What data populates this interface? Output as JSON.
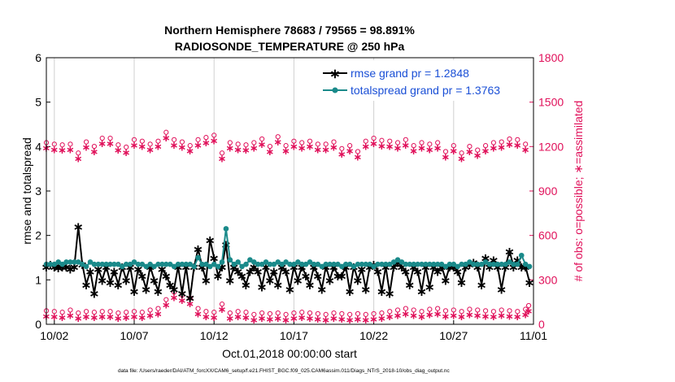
{
  "chart_data": {
    "type": "line",
    "title_line1": "Northern Hemisphere 78683 / 79565 = 98.891%",
    "title_line2": "RADIOSONDE_TEMPERATURE @ 250 hPa",
    "xlabel": "Oct.01,2018 00:00:00 start",
    "ylabel_left": "rmse and totalspread",
    "ylabel_right": "# of obs: o=possible; ∗=assimilated",
    "footer": "data file: /Users/raeder/DAI/ATM_forcXX/CAM6_setup/f.e21.FHIST_BGC.f09_025.CAM6assim.011/Diags_NTrS_2018-10/obs_diag_output.nc",
    "xlim": [
      1.5,
      32.0
    ],
    "ylim_left": [
      0,
      6
    ],
    "ylim_right": [
      0,
      1800
    ],
    "x_tick_values": [
      2,
      7,
      12,
      17,
      22,
      27,
      32
    ],
    "x_tick_labels": [
      "10/02",
      "10/07",
      "10/12",
      "10/17",
      "10/22",
      "10/27",
      "11/01"
    ],
    "y_left_ticks": [
      "0",
      "1",
      "2",
      "3",
      "4",
      "5",
      "6"
    ],
    "y_right_ticks": [
      "0",
      "300",
      "600",
      "900",
      "1200",
      "1500",
      "1800"
    ],
    "legend": [
      {
        "label": "rmse grand pr = 1.2848",
        "color": "#000000"
      },
      {
        "label": "totalspread grand pr = 1.3763",
        "color": "#1a8a8a"
      }
    ],
    "colors": {
      "rmse": "#000000",
      "spread": "#1a8a8a",
      "obs": "#e0105a",
      "label": "#1a4fd6"
    },
    "x": [
      1.5,
      1.75,
      2.0,
      2.25,
      2.5,
      2.75,
      3.0,
      3.25,
      3.5,
      3.75,
      4.0,
      4.25,
      4.5,
      4.75,
      5.0,
      5.25,
      5.5,
      5.75,
      6.0,
      6.25,
      6.5,
      6.75,
      7.0,
      7.25,
      7.5,
      7.75,
      8.0,
      8.25,
      8.5,
      8.75,
      9.0,
      9.25,
      9.5,
      9.75,
      10.0,
      10.25,
      10.5,
      10.75,
      11.0,
      11.25,
      11.5,
      11.75,
      12.0,
      12.25,
      12.5,
      12.75,
      13.0,
      13.25,
      13.5,
      13.75,
      14.0,
      14.25,
      14.5,
      14.75,
      15.0,
      15.25,
      15.5,
      15.75,
      16.0,
      16.25,
      16.5,
      16.75,
      17.0,
      17.25,
      17.5,
      17.75,
      18.0,
      18.25,
      18.5,
      18.75,
      19.0,
      19.25,
      19.5,
      19.75,
      20.0,
      20.25,
      20.5,
      20.75,
      21.0,
      21.25,
      21.5,
      21.75,
      22.0,
      22.25,
      22.5,
      22.75,
      23.0,
      23.25,
      23.5,
      23.75,
      24.0,
      24.25,
      24.5,
      24.75,
      25.0,
      25.25,
      25.5,
      25.75,
      26.0,
      26.25,
      26.5,
      26.75,
      27.0,
      27.25,
      27.5,
      27.75,
      28.0,
      28.25,
      28.5,
      28.75,
      29.0,
      29.25,
      29.5,
      29.75,
      30.0,
      30.25,
      30.5,
      30.75,
      31.0,
      31.25,
      31.5,
      31.75
    ],
    "rmse": [
      1.3,
      1.35,
      1.3,
      1.28,
      1.3,
      1.3,
      1.25,
      1.3,
      2.2,
      1.35,
      0.9,
      1.2,
      0.7,
      1.25,
      1.0,
      1.3,
      0.95,
      1.2,
      0.9,
      1.3,
      1.0,
      1.3,
      0.75,
      1.25,
      1.1,
      0.8,
      1.3,
      1.0,
      0.75,
      1.25,
      1.1,
      0.9,
      0.8,
      1.3,
      0.7,
      1.3,
      0.6,
      1.3,
      1.7,
      1.3,
      1.0,
      1.9,
      1.5,
      1.1,
      1.3,
      1.8,
      1.0,
      1.3,
      1.2,
      1.1,
      0.9,
      1.2,
      1.3,
      1.2,
      0.85,
      1.3,
      1.0,
      1.2,
      0.9,
      1.3,
      1.2,
      0.8,
      1.3,
      1.0,
      1.3,
      1.1,
      0.9,
      1.3,
      1.1,
      0.8,
      1.3,
      1.0,
      1.3,
      1.1,
      1.1,
      1.3,
      0.75,
      1.3,
      1.0,
      1.25,
      0.8,
      1.3,
      1.35,
      1.2,
      0.75,
      1.3,
      0.7,
      1.3,
      1.4,
      1.3,
      1.2,
      0.9,
      1.3,
      1.2,
      0.75,
      1.3,
      0.85,
      1.3,
      1.2,
      1.3,
      1.0,
      1.3,
      1.3,
      1.2,
      0.95,
      1.3,
      1.35,
      1.4,
      1.3,
      0.9,
      1.5,
      1.3,
      1.45,
      1.3,
      0.8,
      1.3,
      1.65,
      1.3,
      1.45,
      1.3,
      1.3,
      0.95
    ],
    "spread": [
      1.35,
      1.35,
      1.35,
      1.4,
      1.35,
      1.4,
      1.4,
      1.4,
      1.4,
      1.35,
      1.3,
      1.4,
      1.35,
      1.35,
      1.35,
      1.35,
      1.35,
      1.35,
      1.35,
      1.3,
      1.35,
      1.35,
      1.4,
      1.35,
      1.35,
      1.3,
      1.35,
      1.3,
      1.35,
      1.35,
      1.35,
      1.35,
      1.3,
      1.35,
      1.35,
      1.35,
      1.35,
      1.3,
      1.5,
      1.35,
      1.35,
      1.3,
      1.35,
      1.3,
      1.4,
      2.15,
      1.45,
      1.35,
      1.4,
      1.3,
      1.35,
      1.45,
      1.4,
      1.35,
      1.35,
      1.4,
      1.35,
      1.35,
      1.4,
      1.35,
      1.4,
      1.35,
      1.35,
      1.4,
      1.35,
      1.35,
      1.4,
      1.35,
      1.35,
      1.3,
      1.35,
      1.35,
      1.35,
      1.35,
      1.3,
      1.35,
      1.35,
      1.3,
      1.35,
      1.35,
      1.35,
      1.35,
      1.3,
      1.35,
      1.35,
      1.35,
      1.35,
      1.4,
      1.45,
      1.4,
      1.35,
      1.35,
      1.35,
      1.35,
      1.35,
      1.35,
      1.35,
      1.35,
      1.35,
      1.35,
      1.3,
      1.35,
      1.35,
      1.3,
      1.35,
      1.35,
      1.4,
      1.35,
      1.35,
      1.35,
      1.4,
      1.35,
      1.35,
      1.35,
      1.35,
      1.35,
      1.4,
      1.35,
      1.35,
      1.55,
      1.35,
      1.3
    ],
    "obs_upper_x": [
      1.5,
      2.0,
      2.5,
      3.0,
      3.5,
      4.0,
      4.5,
      5.0,
      5.5,
      6.0,
      6.5,
      7.0,
      7.5,
      8.0,
      8.5,
      9.0,
      9.5,
      10.0,
      10.5,
      11.0,
      11.5,
      12.0,
      12.5,
      13.0,
      13.5,
      14.0,
      14.5,
      15.0,
      15.5,
      16.0,
      16.5,
      17.0,
      17.5,
      18.0,
      18.5,
      19.0,
      19.5,
      20.0,
      20.5,
      21.0,
      21.5,
      22.0,
      22.5,
      23.0,
      23.5,
      24.0,
      24.5,
      25.0,
      25.5,
      26.0,
      26.5,
      27.0,
      27.5,
      28.0,
      28.5,
      29.0,
      29.5,
      30.0,
      30.5,
      31.0,
      31.5
    ],
    "obs_upper": [
      1210,
      1200,
      1195,
      1200,
      1140,
      1215,
      1185,
      1240,
      1240,
      1195,
      1180,
      1230,
      1220,
      1200,
      1220,
      1280,
      1230,
      1215,
      1190,
      1230,
      1245,
      1260,
      1140,
      1210,
      1200,
      1195,
      1210,
      1235,
      1185,
      1250,
      1190,
      1220,
      1210,
      1220,
      1200,
      1200,
      1215,
      1170,
      1190,
      1150,
      1220,
      1240,
      1225,
      1220,
      1210,
      1230,
      1190,
      1210,
      1200,
      1210,
      1150,
      1190,
      1140,
      1185,
      1160,
      1190,
      1210,
      1215,
      1235,
      1230,
      1200
    ],
    "obs_lower_x": [
      1.5,
      2.0,
      2.5,
      3.0,
      3.5,
      4.0,
      4.5,
      5.0,
      5.5,
      6.0,
      6.5,
      7.0,
      7.5,
      8.0,
      8.5,
      9.0,
      9.5,
      10.0,
      10.5,
      11.0,
      11.5,
      12.0,
      12.5,
      13.0,
      13.5,
      14.0,
      14.5,
      15.0,
      15.5,
      16.0,
      16.5,
      17.0,
      17.5,
      18.0,
      18.5,
      19.0,
      19.5,
      20.0,
      20.5,
      21.0,
      21.5,
      22.0,
      22.5,
      23.0,
      23.5,
      24.0,
      24.5,
      25.0,
      25.5,
      26.0,
      26.5,
      27.0,
      27.5,
      28.0,
      28.5,
      29.0,
      29.5,
      30.0,
      30.5,
      31.0,
      31.5,
      31.7
    ],
    "obs_lower": [
      75,
      70,
      65,
      80,
      60,
      70,
      65,
      70,
      70,
      60,
      65,
      70,
      65,
      80,
      90,
      150,
      200,
      180,
      160,
      90,
      70,
      65,
      120,
      60,
      70,
      65,
      50,
      60,
      55,
      60,
      50,
      60,
      65,
      60,
      55,
      50,
      60,
      55,
      50,
      55,
      50,
      55,
      60,
      70,
      80,
      90,
      80,
      70,
      85,
      90,
      75,
      80,
      70,
      85,
      80,
      75,
      70,
      80,
      75,
      70,
      85,
      110
    ]
  }
}
